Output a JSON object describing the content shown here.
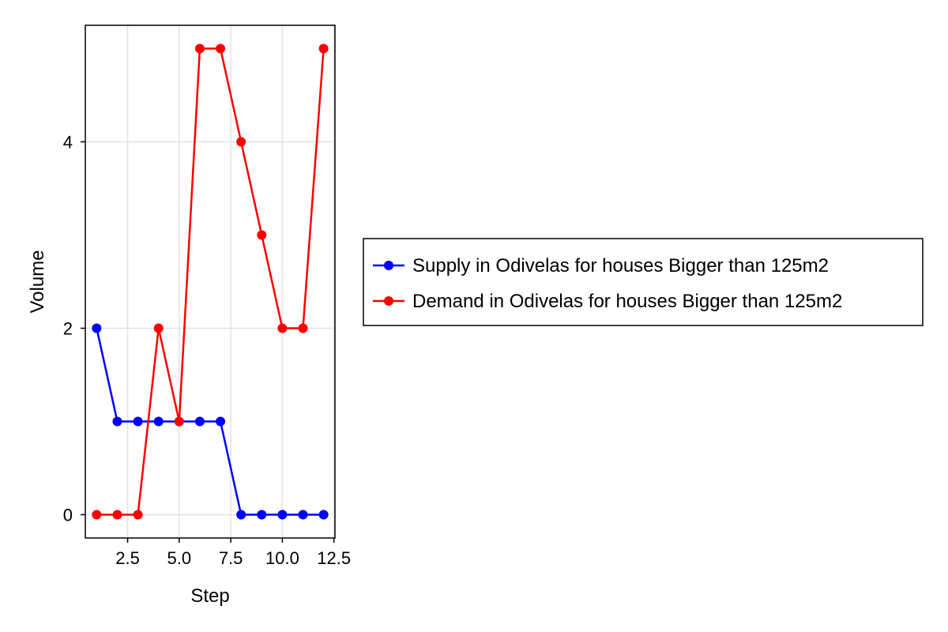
{
  "chart_data": {
    "type": "line",
    "xlabel": "Step",
    "ylabel": "Volume",
    "xlim": [
      0.45,
      12.55
    ],
    "ylim": [
      -0.25,
      5.25
    ],
    "x_ticks": [
      2.5,
      5.0,
      7.5,
      10.0,
      12.5
    ],
    "x_tick_labels": [
      "2.5",
      "5.0",
      "7.5",
      "10.0",
      "12.5"
    ],
    "y_ticks": [
      0,
      2,
      4
    ],
    "y_tick_labels": [
      "0",
      "2",
      "4"
    ],
    "grid": true,
    "legend_position": "right",
    "x": [
      1,
      2,
      3,
      4,
      5,
      6,
      7,
      8,
      9,
      10,
      11,
      12
    ],
    "series": [
      {
        "name": "Supply in Odivelas for houses Bigger than 125m2",
        "color": "#0000ff",
        "values": [
          2,
          1,
          1,
          1,
          1,
          1,
          1,
          0,
          0,
          0,
          0,
          0
        ]
      },
      {
        "name": "Demand in Odivelas for houses Bigger than 125m2",
        "color": "#ff0000",
        "values": [
          0,
          0,
          0,
          2,
          1,
          5,
          5,
          4,
          3,
          2,
          2,
          5
        ]
      }
    ]
  }
}
